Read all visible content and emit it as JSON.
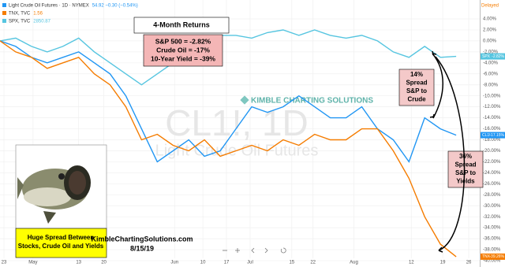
{
  "chart_data": {
    "type": "line",
    "quotes": [
      {
        "symbol": "Light Crude Oil Futures · 1D · NYMEX",
        "value": "54.92  −0.30 (−0.54%)",
        "color": "#2196f3"
      },
      {
        "symbol": "TNX, TVC",
        "value": "1.56",
        "color": "#f57c00"
      },
      {
        "symbol": "SPX, TVC",
        "value": "2850.87",
        "color": "#56c5e0"
      }
    ],
    "status": "Delayed",
    "watermark": [
      "CL1!, 1D",
      "Light Crude Oil Futures"
    ],
    "logo": "KIMBLE CHARTING SOLUTIONS",
    "x": [
      0,
      4,
      8,
      12,
      16,
      20,
      24,
      28,
      32,
      36,
      40,
      44,
      48,
      52,
      56,
      60,
      64,
      68,
      72,
      76,
      80,
      84,
      88,
      92,
      96,
      100,
      104,
      108,
      112,
      116
    ],
    "xlim": [
      0,
      122
    ],
    "xticks": [
      {
        "value": 1,
        "label": "23"
      },
      {
        "value": 8.4,
        "label": "May"
      },
      {
        "value": 20,
        "label": "13"
      },
      {
        "value": 26.4,
        "label": "20"
      },
      {
        "value": 44.4,
        "label": "Jun"
      },
      {
        "value": 51.6,
        "label": "10"
      },
      {
        "value": 57.6,
        "label": "17"
      },
      {
        "value": 63.6,
        "label": "Jul"
      },
      {
        "value": 74.2,
        "label": "15"
      },
      {
        "value": 79.6,
        "label": "22"
      },
      {
        "value": 90,
        "label": "Aug"
      },
      {
        "value": 104.6,
        "label": "12"
      },
      {
        "value": 112.6,
        "label": "19"
      },
      {
        "value": 119.2,
        "label": "26"
      }
    ],
    "ylim": [
      -41,
      4
    ],
    "yticks": [
      {
        "value": 4,
        "label": "4.00%"
      },
      {
        "value": 2,
        "label": "2.00%"
      },
      {
        "value": 0,
        "label": "0.00%"
      },
      {
        "value": -2,
        "label": "-2.00%"
      },
      {
        "value": -4,
        "label": "-4.00%"
      },
      {
        "value": -6,
        "label": "-6.00%"
      },
      {
        "value": -8,
        "label": "-8.00%"
      },
      {
        "value": -10,
        "label": "-10.00%"
      },
      {
        "value": -12,
        "label": "-12.00%"
      },
      {
        "value": -14,
        "label": "-14.00%"
      },
      {
        "value": -16,
        "label": "-16.00%"
      },
      {
        "value": -18,
        "label": "-18.00%"
      },
      {
        "value": -20,
        "label": "-20.00%"
      },
      {
        "value": -22,
        "label": "-22.00%"
      },
      {
        "value": -24,
        "label": "-24.00%"
      },
      {
        "value": -26,
        "label": "-26.00%"
      },
      {
        "value": -28,
        "label": "-28.00%"
      },
      {
        "value": -30,
        "label": "-30.00%"
      },
      {
        "value": -32,
        "label": "-32.00%"
      },
      {
        "value": -34,
        "label": "-34.00%"
      },
      {
        "value": -36,
        "label": "-36.00%"
      },
      {
        "value": -38,
        "label": "-38.00%"
      },
      {
        "value": -40,
        "label": "-40.00%"
      }
    ],
    "grid": true,
    "series": [
      {
        "name": "SPX",
        "color": "#56c5e0",
        "values": [
          0,
          0.5,
          -1,
          -2,
          -1,
          0.5,
          -2,
          -4,
          -6,
          -8,
          -6,
          -4,
          -1,
          0,
          1,
          1,
          0.5,
          1.5,
          2,
          1,
          2,
          1,
          0.5,
          1,
          0,
          -2,
          -3,
          -1,
          -3,
          -2.82
        ],
        "last_label": "-2.82%"
      },
      {
        "name": "CL1!",
        "color": "#2196f3",
        "values": [
          0,
          -1,
          -3,
          -4,
          -3,
          -2,
          -4,
          -6,
          -10,
          -16,
          -22,
          -20,
          -18,
          -21,
          -20,
          -16,
          -12,
          -13,
          -12,
          -10,
          -12,
          -14,
          -14,
          -12,
          -16,
          -18,
          -22,
          -14,
          -16,
          -17.15
        ],
        "last_label": "-17.15%"
      },
      {
        "name": "TNX",
        "color": "#f57c00",
        "values": [
          0,
          -2,
          -3,
          -5,
          -4,
          -3,
          -6,
          -8,
          -12,
          -18,
          -17,
          -19,
          -20,
          -18,
          -21,
          -20,
          -19,
          -20,
          -18,
          -19,
          -17,
          -18,
          -18,
          -16,
          -16,
          -20,
          -25,
          -32,
          -37,
          -39.26
        ],
        "last_label": "-39.26%"
      }
    ],
    "annotations": {
      "returns_title": "4-Month Returns",
      "returns_lines": [
        "S&P 500 = -2.82%",
        "Crude Oil = -17%",
        "10-Year Yield = -39%"
      ],
      "spread_crude": [
        "14%",
        "Spread",
        "S&P to",
        "Crude"
      ],
      "spread_yields": [
        "36%",
        "Spread",
        "S&P to",
        "Yields"
      ],
      "caption": [
        "Huge Spread Between",
        "Stocks, Crude Oil and Yields"
      ],
      "site": "KimbleChartingSolutions.com",
      "date": "8/15/19"
    }
  }
}
